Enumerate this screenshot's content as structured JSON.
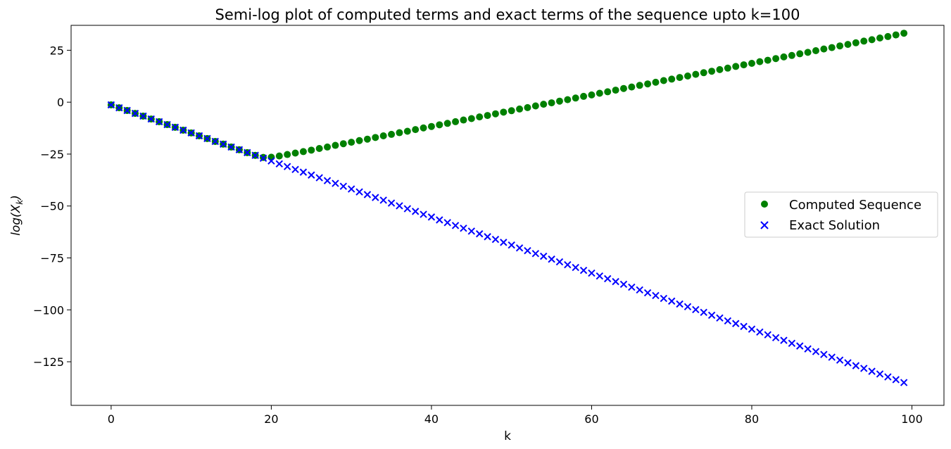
{
  "chart_data": {
    "type": "scatter",
    "title": "Semi-log plot of computed terms and exact terms of the sequence upto k=100",
    "xlabel": "k",
    "ylabel": "log(X_k)",
    "ylabel_parts": {
      "base": "log(X",
      "sub": "k",
      "close": ")"
    },
    "xlim": [
      -5,
      104
    ],
    "ylim": [
      -146,
      37
    ],
    "xticks": [
      0,
      20,
      40,
      60,
      80,
      100
    ],
    "yticks": [
      25,
      0,
      -25,
      -50,
      -75,
      -100,
      -125
    ],
    "grid": false,
    "legend_position": "center-right",
    "series": [
      {
        "name": "Computed Sequence",
        "marker": "circle",
        "color": "#008000",
        "x_start": 0,
        "x_end": 99,
        "values": [
          -1.3,
          -2.7,
          -4.0,
          -5.4,
          -6.7,
          -8.1,
          -9.4,
          -10.8,
          -12.1,
          -13.5,
          -14.8,
          -16.2,
          -17.5,
          -18.9,
          -20.2,
          -21.6,
          -22.9,
          -24.3,
          -25.6,
          -26.6,
          -26.5,
          -25.9,
          -25.2,
          -24.5,
          -23.8,
          -23.1,
          -22.3,
          -21.6,
          -20.8,
          -20.0,
          -19.3,
          -18.5,
          -17.8,
          -17.0,
          -16.2,
          -15.5,
          -14.7,
          -14.0,
          -13.2,
          -12.4,
          -11.7,
          -10.9,
          -10.2,
          -9.4,
          -8.6,
          -7.9,
          -7.1,
          -6.4,
          -5.6,
          -4.8,
          -4.1,
          -3.3,
          -2.6,
          -1.8,
          -1.0,
          -0.3,
          0.5,
          1.2,
          2.0,
          2.8,
          3.5,
          4.3,
          5.0,
          5.8,
          6.6,
          7.3,
          8.1,
          8.8,
          9.6,
          10.4,
          11.1,
          11.9,
          12.6,
          13.4,
          14.2,
          14.9,
          15.7,
          16.4,
          17.2,
          18.0,
          18.7,
          19.5,
          20.2,
          21.0,
          21.8,
          22.5,
          23.3,
          24.0,
          24.8,
          25.6,
          26.3,
          27.1,
          27.8,
          28.6,
          29.4,
          30.1,
          30.9,
          31.6,
          32.4,
          33.2
        ]
      },
      {
        "name": "Exact Solution",
        "marker": "x",
        "color": "#0000ff",
        "x_start": 0,
        "x_end": 99,
        "values": [
          -1.3,
          -2.7,
          -4.0,
          -5.4,
          -6.7,
          -8.1,
          -9.4,
          -10.8,
          -12.1,
          -13.5,
          -14.8,
          -16.2,
          -17.5,
          -18.9,
          -20.2,
          -21.6,
          -22.9,
          -24.3,
          -25.6,
          -27.0,
          -28.3,
          -29.7,
          -31.0,
          -32.4,
          -33.7,
          -35.1,
          -36.4,
          -37.8,
          -39.1,
          -40.5,
          -41.8,
          -43.2,
          -44.5,
          -45.9,
          -47.2,
          -48.6,
          -49.9,
          -51.3,
          -52.6,
          -54.0,
          -55.3,
          -56.7,
          -58.0,
          -59.4,
          -60.7,
          -62.1,
          -63.4,
          -64.8,
          -66.1,
          -67.5,
          -68.8,
          -70.2,
          -71.5,
          -72.9,
          -74.2,
          -75.6,
          -76.9,
          -78.3,
          -79.6,
          -81.0,
          -82.3,
          -83.7,
          -85.0,
          -86.4,
          -87.7,
          -89.1,
          -90.4,
          -91.8,
          -93.1,
          -94.5,
          -95.8,
          -97.2,
          -98.5,
          -99.9,
          -101.2,
          -102.6,
          -103.9,
          -105.3,
          -106.6,
          -108.0,
          -109.3,
          -110.7,
          -112.0,
          -113.4,
          -114.7,
          -116.1,
          -117.4,
          -118.8,
          -120.1,
          -121.5,
          -122.8,
          -124.2,
          -125.5,
          -126.9,
          -128.2,
          -129.6,
          -130.9,
          -132.3,
          -133.6,
          -135.0
        ]
      }
    ]
  }
}
